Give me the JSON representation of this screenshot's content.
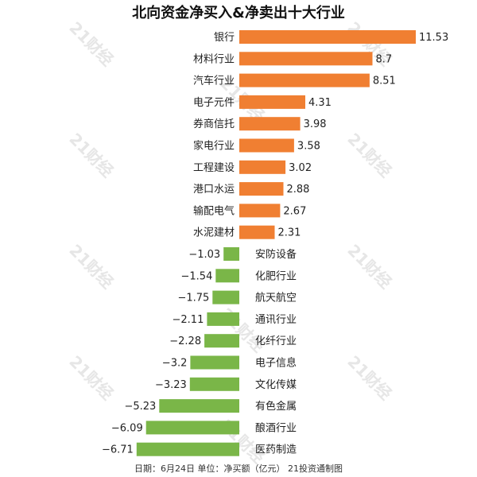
{
  "chart_data": {
    "type": "bar",
    "orientation": "horizontal",
    "title": "北向资金净买入&净卖出十大行业",
    "categories": [
      "银行",
      "材料行业",
      "汽车行业",
      "电子元件",
      "券商信托",
      "家电行业",
      "工程建设",
      "港口水运",
      "输配电气",
      "水泥建材",
      "安防设备",
      "化肥行业",
      "航天航空",
      "通讯行业",
      "化纤行业",
      "电子信息",
      "文化传媒",
      "有色金属",
      "酿酒行业",
      "医药制造"
    ],
    "values": [
      11.53,
      8.7,
      8.51,
      4.31,
      3.98,
      3.58,
      3.02,
      2.88,
      2.67,
      2.31,
      -1.03,
      -1.54,
      -1.75,
      -2.11,
      -2.28,
      -3.2,
      -3.23,
      -5.23,
      -6.09,
      -6.71
    ],
    "value_labels": [
      "11.53",
      "8.7",
      "8.51",
      "4.31",
      "3.98",
      "3.58",
      "3.02",
      "2.88",
      "2.67",
      "2.31",
      "−1.03",
      "−1.54",
      "−1.75",
      "−2.11",
      "−2.28",
      "−3.2",
      "−3.23",
      "−5.23",
      "−6.09",
      "−6.71"
    ],
    "colors": {
      "positive": "#f07f32",
      "negative": "#7ab648"
    },
    "grid": false,
    "legend": "none"
  },
  "footer": "日期：6月24日 单位：净买额（亿元） 21投资通制图",
  "watermark": "21财经"
}
